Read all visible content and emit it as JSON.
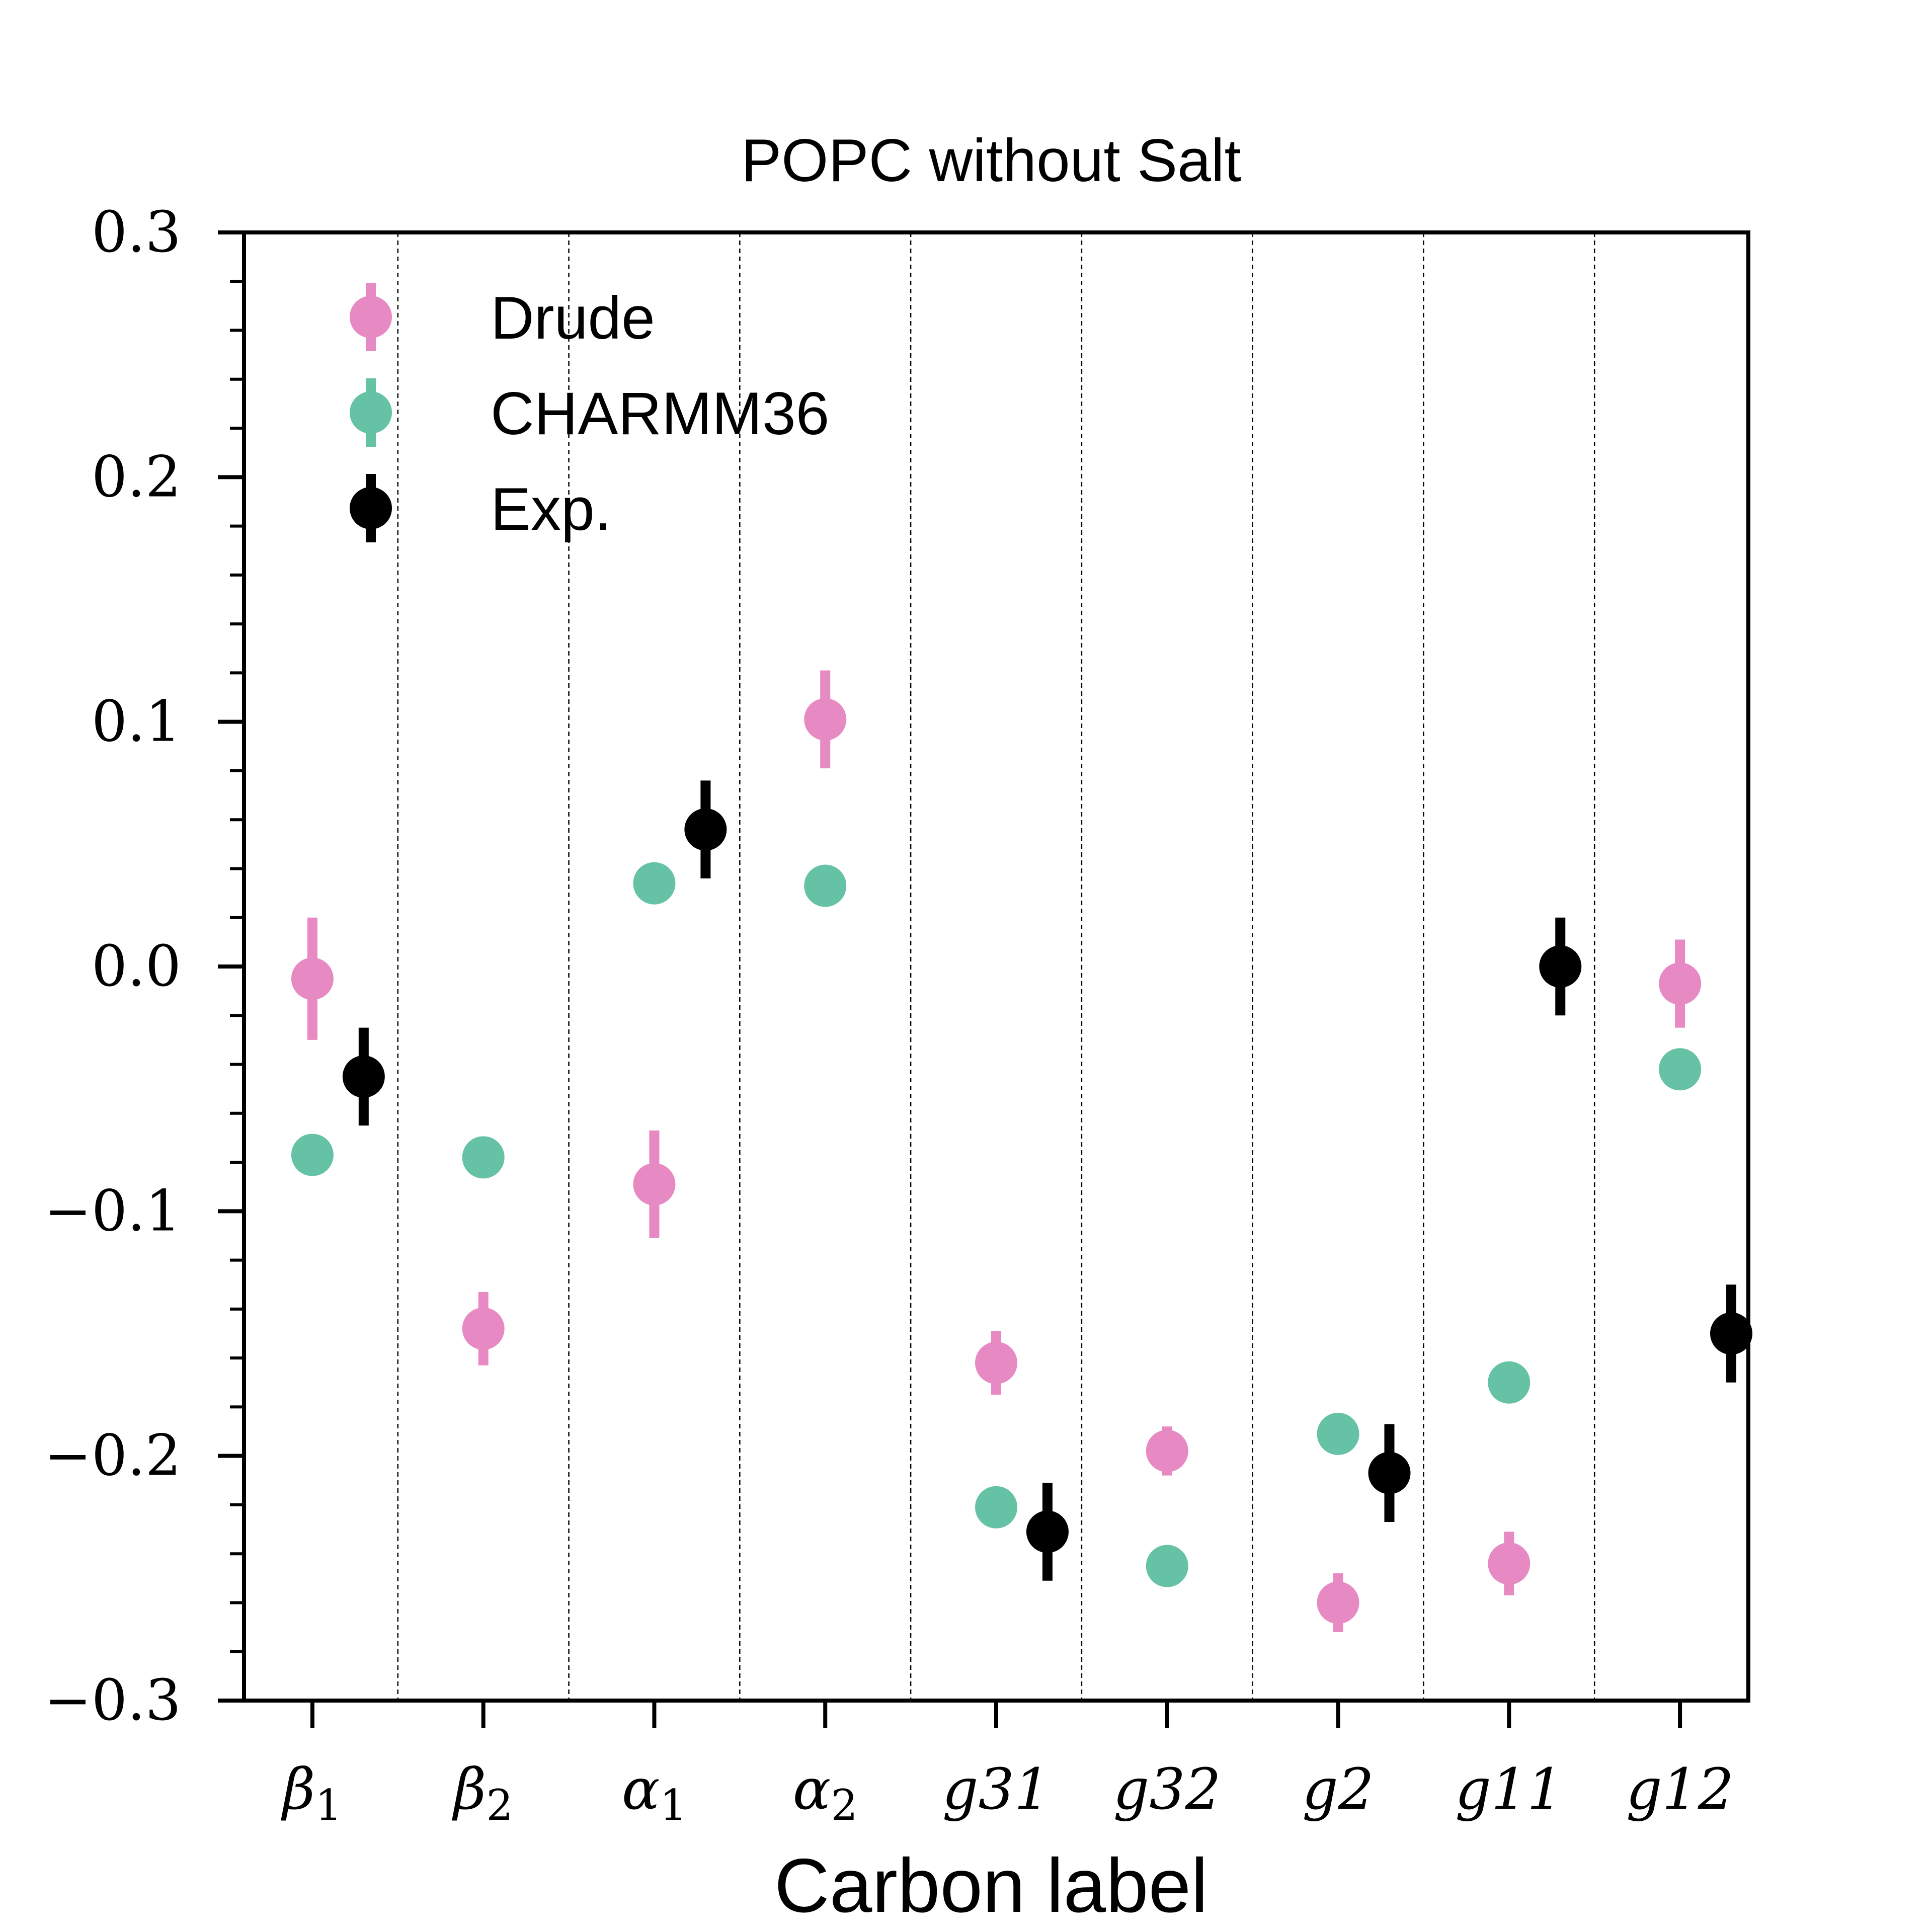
{
  "chart_data": {
    "type": "scatter",
    "title": "POPC without Salt",
    "xlabel": "Carbon label",
    "ylabel": "",
    "ylim": [
      -0.3,
      0.3
    ],
    "yticks": [
      -0.3,
      -0.2,
      -0.1,
      0.0,
      0.1,
      0.2,
      0.3
    ],
    "ytick_labels": [
      "−0.3",
      "−0.2",
      "−0.1",
      "0.0",
      "0.1",
      "0.2",
      "0.3"
    ],
    "minor_ytick_step": 0.02,
    "categories": [
      "β1",
      "β2",
      "α1",
      "α2",
      "g31",
      "g32",
      "g2",
      "g11",
      "g12"
    ],
    "category_ticks": [
      {
        "main": "β",
        "sub": "1"
      },
      {
        "main": "β",
        "sub": "2"
      },
      {
        "main": "α",
        "sub": "1"
      },
      {
        "main": "α",
        "sub": "2"
      },
      {
        "main": "g31",
        "sub": ""
      },
      {
        "main": "g32",
        "sub": ""
      },
      {
        "main": "g2",
        "sub": ""
      },
      {
        "main": "g11",
        "sub": ""
      },
      {
        "main": "g12",
        "sub": ""
      }
    ],
    "category_separators": "dashed",
    "legend_position": "top-left",
    "series": [
      {
        "name": "Drude",
        "color": "#e78ac3",
        "offset": 0.0,
        "values": [
          -0.005,
          -0.148,
          -0.089,
          0.101,
          -0.162,
          -0.198,
          -0.26,
          -0.244,
          -0.007
        ],
        "errors": [
          0.025,
          0.015,
          0.022,
          0.02,
          0.013,
          0.01,
          0.012,
          0.013,
          0.018
        ]
      },
      {
        "name": "CHARMM36",
        "color": "#66c2a5",
        "offset": 0.0,
        "values": [
          -0.077,
          -0.078,
          0.034,
          0.033,
          -0.221,
          -0.245,
          -0.191,
          -0.17,
          -0.042
        ],
        "errors": [
          0.0,
          0.0,
          0.0,
          0.0,
          0.0,
          0.0,
          0.0,
          0.0,
          0.0
        ]
      },
      {
        "name": "Exp.",
        "color": "#000000",
        "offset": 0.3,
        "points": [
          {
            "category": "β1",
            "y": -0.045,
            "err": 0.02
          },
          {
            "category": "α1",
            "y": 0.056,
            "err": 0.02
          },
          {
            "category": "g31",
            "y": -0.231,
            "err": 0.02
          },
          {
            "category": "g2",
            "y": -0.207,
            "err": 0.02
          },
          {
            "category": "g11",
            "y": 0.0,
            "err": 0.02
          },
          {
            "category": "g12",
            "y": -0.15,
            "err": 0.02
          }
        ]
      }
    ]
  }
}
